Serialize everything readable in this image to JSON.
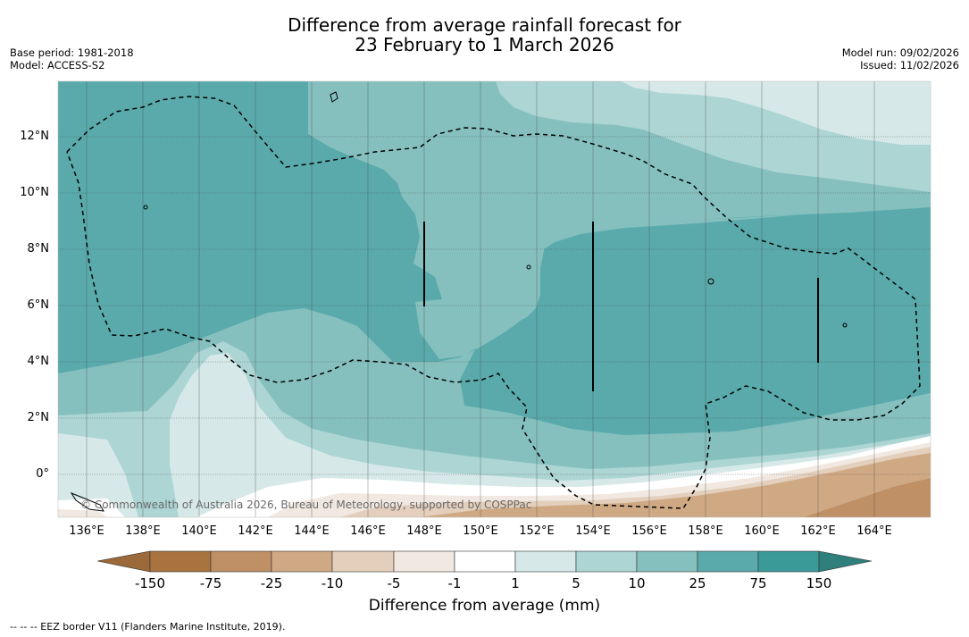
{
  "title_line1": "Difference from average rainfall forecast for",
  "title_line2": "23 February to 1 March 2026",
  "base_period": "Base period: 1981-2018",
  "model": "Model: ACCESS-S2",
  "model_run": "Model run: 09/02/2026",
  "issued": "Issued: 11/02/2026",
  "copyright": "© Commonwealth of Australia 2026, Bureau of Meteorology, supported by COSPPac",
  "x_ticks": [
    "136°E",
    "138°E",
    "140°E",
    "142°E",
    "144°E",
    "146°E",
    "148°E",
    "150°E",
    "152°E",
    "154°E",
    "156°E",
    "158°E",
    "160°E",
    "162°E",
    "164°E"
  ],
  "y_ticks": [
    "12°N",
    "10°N",
    "8°N",
    "6°N",
    "4°N",
    "2°N",
    "0°"
  ],
  "colorbar": {
    "labels": [
      "-150",
      "-75",
      "-25",
      "-10",
      "-5",
      "-1",
      "1",
      "5",
      "10",
      "25",
      "75",
      "150"
    ],
    "colors": {
      "below_neg150": "#9c6a3a",
      "neg150_neg75": "#a8733f",
      "neg75_neg25": "#bf8f66",
      "neg25_neg10": "#cfa984",
      "neg10_neg5": "#e3cfbc",
      "neg5_neg1": "#f1e9e1",
      "neg1_1": "#ffffff",
      "1_5": "#d6e9e8",
      "5_10": "#acd5d4",
      "10_25": "#85c0bf",
      "25_75": "#5aaaab",
      "75_150": "#3a9a98",
      "above_150": "#2f7f7d"
    },
    "title": "Difference from average (mm)"
  },
  "footnote": "--  --  -- EEZ border V11 (Flanders Marine Institute, 2019)."
}
